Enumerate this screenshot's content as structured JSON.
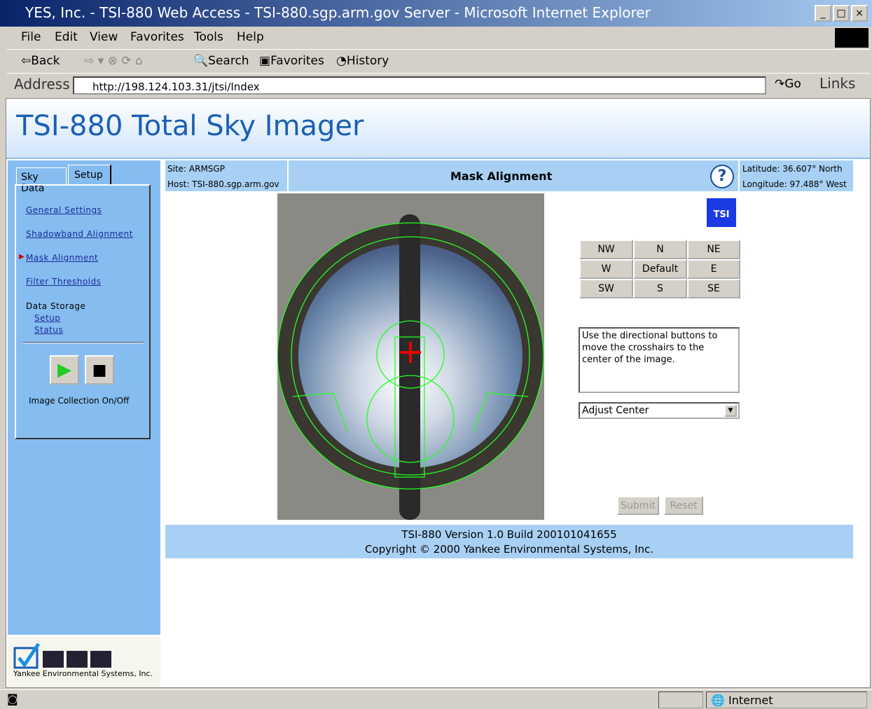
{
  "window": {
    "title": "YES, Inc. - TSI-880 Web Access - TSI-880.sgp.arm.gov Server - Microsoft Internet Explorer"
  },
  "menu": [
    "File",
    "Edit",
    "View",
    "Favorites",
    "Tools",
    "Help"
  ],
  "toolbar": [
    "Back",
    "Search",
    "Favorites",
    "History"
  ],
  "address": {
    "label": "Address",
    "url": "http://198.124.103.31/jtsi/Index",
    "go": "Go",
    "links": "Links"
  },
  "header": {
    "title": "TSI-880 Total Sky Imager"
  },
  "tabs": [
    "Sky Data",
    "Setup"
  ],
  "nav": {
    "links": [
      "General Settings",
      "Shadowband Alignment",
      "Mask Alignment",
      "Filter Thresholds"
    ],
    "storage": "Data Storage",
    "storage_links": [
      "Setup",
      "Status"
    ],
    "collection": "Image Collection On/Off"
  },
  "logo": {
    "caption": "Yankee Environmental Systems, Inc."
  },
  "info": {
    "site": "Site: ARMSGP",
    "host": "Host: TSI-880.sgp.arm.gov",
    "heading": "Mask Alignment",
    "help": "?",
    "latitude": "Latitude: 36.607° North",
    "longitude": "Longitude: 97.488° West"
  },
  "tsi_icon": "TSI",
  "directions": [
    [
      "NW",
      "N",
      "NE"
    ],
    [
      "W",
      "Default",
      "E"
    ],
    [
      "SW",
      "S",
      "SE"
    ]
  ],
  "instructions": "Use the directional buttons to move the crosshairs to the center of the image.",
  "select": "Adjust Center",
  "buttons": [
    "Submit",
    "Reset"
  ],
  "footer": [
    "TSI-880 Version 1.0 Build 200101041655",
    "Copyright © 2000 Yankee Environmental Systems, Inc."
  ],
  "status": {
    "zone": "Internet"
  }
}
